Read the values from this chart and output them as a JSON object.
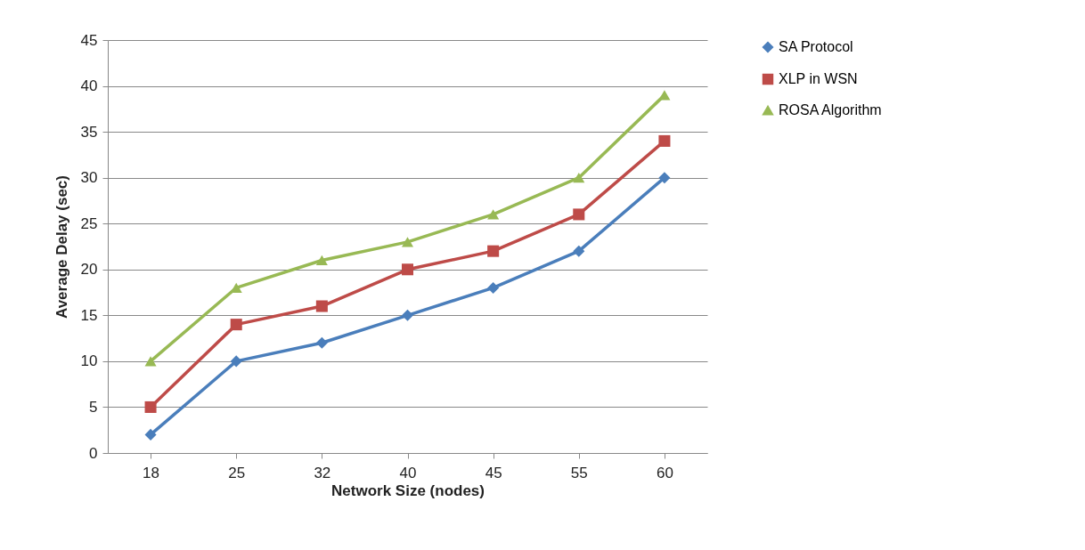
{
  "chart_data": {
    "type": "line",
    "xlabel": "Network Size (nodes)",
    "ylabel": "Average Delay (sec)",
    "categories": [
      "18",
      "25",
      "32",
      "40",
      "45",
      "55",
      "60"
    ],
    "series": [
      {
        "name": "SA Protocol",
        "color": "#4a7ebb",
        "marker": "diamond",
        "values": [
          2,
          10,
          12,
          15,
          18,
          22,
          30
        ]
      },
      {
        "name": "XLP in WSN",
        "color": "#be4b48",
        "marker": "square",
        "values": [
          5,
          14,
          16,
          20,
          22,
          26,
          34
        ]
      },
      {
        "name": "ROSA Algorithm",
        "color": "#98b954",
        "marker": "triangle",
        "values": [
          10,
          18,
          21,
          23,
          26,
          30,
          39
        ]
      }
    ],
    "ylim": [
      0,
      45
    ],
    "yticks": [
      0,
      5,
      10,
      15,
      20,
      25,
      30,
      35,
      40,
      45
    ],
    "grid": "y",
    "legend": "right",
    "line_style": "solid"
  }
}
